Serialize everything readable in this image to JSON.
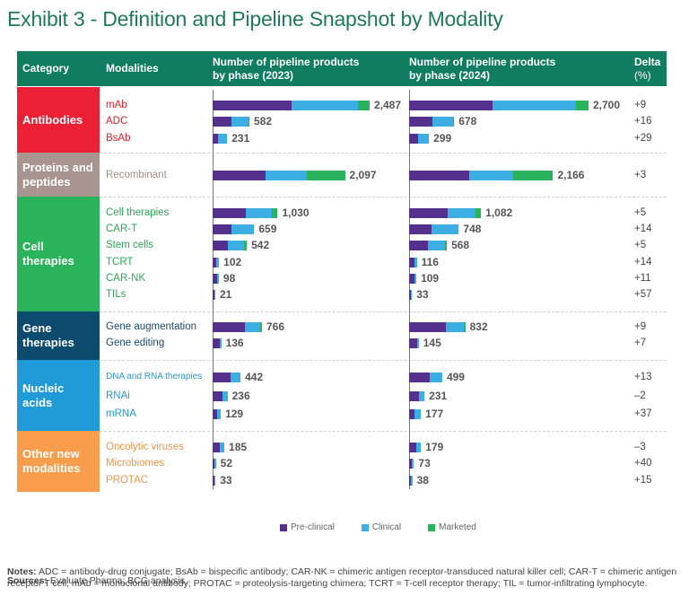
{
  "title": "Exhibit 3 - Definition and Pipeline Snapshot by Modality",
  "header": {
    "category": "Category",
    "modalities": "Modalities",
    "col2023_line1": "Number of pipeline products",
    "col2023_line2": "by phase (2023)",
    "col2024_line1": "Number of pipeline products",
    "col2024_line2": "by phase (2024)",
    "delta_line1": "Delta",
    "delta_line2": "(%)"
  },
  "colors": {
    "header": "#0f7d5e",
    "title": "#1e7a5a",
    "preclinical": "#55308d",
    "clinical": "#3daee3",
    "marketed": "#29b35c"
  },
  "legend": {
    "preclinical": "Pre-clinical",
    "clinical": "Clinical",
    "marketed": "Marketed"
  },
  "categories": [
    {
      "label_line1": "Antibodies",
      "label_line2": "",
      "color": "#ec2034",
      "text_color": "#d9232e"
    },
    {
      "label_line1": "Proteins and",
      "label_line2": "peptides",
      "color": "#a99590",
      "text_color": "#a18e89"
    },
    {
      "label_line1": "Cell",
      "label_line2": "therapies",
      "color": "#2bb35b",
      "text_color": "#2aa855"
    },
    {
      "label_line1": "Gene",
      "label_line2": "therapies",
      "color": "#0c4a6e",
      "text_color": "#174a70"
    },
    {
      "label_line1": "Nucleic",
      "label_line2": "acids",
      "color": "#209bd7",
      "text_color": "#1e9ad6"
    },
    {
      "label_line1": "Other new",
      "label_line2": "modalities",
      "color": "#f79d4c",
      "text_color": "#f0954a"
    }
  ],
  "sources_label": "Sources:",
  "sources_text": " Evaluate Pharma; BCG analysis.",
  "notes_label": "Notes:",
  "notes_text": " ADC = antibody-drug conjugate; BsAb = bispecific antibody; CAR-NK = chimeric antigen receptor-transduced natural killer cell; CAR-T = chimeric antigen receptor T cell; mAb = monoclonal antibody; PROTAC = proteolysis-targeting chimera; TCRT = T-cell receptor therapy; TIL = tumor-infiltrating lymphocyte.",
  "chart_data": {
    "type": "bar",
    "title": "Exhibit 3 - Definition and Pipeline Snapshot by Modality",
    "orientation": "horizontal-stacked",
    "series_names": [
      "Pre-clinical",
      "Clinical",
      "Marketed"
    ],
    "legend_position": "bottom",
    "rows": [
      {
        "category": 0,
        "modality": "mAb",
        "total_2023": "2,487",
        "total_2024": "2,700",
        "delta": "+9",
        "y2023": [
          1250,
          1050,
          187
        ],
        "y2024": [
          1255,
          1255,
          190
        ]
      },
      {
        "category": 0,
        "modality": "ADC",
        "total_2023": "582",
        "total_2024": "678",
        "delta": "+16",
        "y2023": [
          300,
          262,
          20
        ],
        "y2024": [
          355,
          300,
          23
        ]
      },
      {
        "category": 0,
        "modality": "BsAb",
        "total_2023": "231",
        "total_2024": "299",
        "delta": "+29",
        "y2023": [
          90,
          141,
          0
        ],
        "y2024": [
          130,
          169,
          0
        ]
      },
      {
        "category": 1,
        "modality": "Recombinant",
        "total_2023": "2,097",
        "total_2024": "2,166",
        "delta": "+3",
        "y2023": [
          845,
          652,
          600
        ],
        "y2024": [
          900,
          666,
          600
        ]
      },
      {
        "category": 2,
        "modality": "Cell therapies",
        "total_2023": "1,030",
        "total_2024": "1,082",
        "delta": "+5",
        "y2023": [
          530,
          410,
          90
        ],
        "y2024": [
          585,
          410,
          87
        ]
      },
      {
        "category": 2,
        "modality": "CAR-T",
        "total_2023": "659",
        "total_2024": "748",
        "delta": "+14",
        "y2023": [
          305,
          354,
          0
        ],
        "y2024": [
          340,
          408,
          0
        ]
      },
      {
        "category": 2,
        "modality": "Stem cells",
        "total_2023": "542",
        "total_2024": "568",
        "delta": "+5",
        "y2023": [
          245,
          257,
          40
        ],
        "y2024": [
          285,
          253,
          30
        ]
      },
      {
        "category": 2,
        "modality": "TCRT",
        "total_2023": "102",
        "total_2024": "116",
        "delta": "+14",
        "y2023": [
          60,
          42,
          0
        ],
        "y2024": [
          75,
          41,
          0
        ]
      },
      {
        "category": 2,
        "modality": "CAR-NK",
        "total_2023": "98",
        "total_2024": "109",
        "delta": "+11",
        "y2023": [
          75,
          23,
          0
        ],
        "y2024": [
          75,
          34,
          0
        ]
      },
      {
        "category": 2,
        "modality": "TILs",
        "total_2023": "21",
        "total_2024": "33",
        "delta": "+57",
        "y2023": [
          6,
          15,
          0
        ],
        "y2024": [
          10,
          23,
          0
        ]
      },
      {
        "category": 3,
        "modality": "Gene augmentation",
        "total_2023": "766",
        "total_2024": "832",
        "delta": "+9",
        "y2023": [
          510,
          250,
          6
        ],
        "y2024": [
          560,
          265,
          7
        ]
      },
      {
        "category": 3,
        "modality": "Gene editing",
        "total_2023": "136",
        "total_2024": "145",
        "delta": "+7",
        "y2023": [
          115,
          21,
          0
        ],
        "y2024": [
          125,
          20,
          0
        ]
      },
      {
        "category": 4,
        "modality": "DNA and RNA therapies",
        "total_2023": "442",
        "total_2024": "499",
        "delta": "+13",
        "y2023": [
          280,
          162,
          0
        ],
        "y2024": [
          310,
          189,
          0
        ]
      },
      {
        "category": 4,
        "modality": "RNAi",
        "total_2023": "236",
        "total_2024": "231",
        "delta": "–2",
        "y2023": [
          160,
          76,
          0
        ],
        "y2024": [
          145,
          86,
          0
        ]
      },
      {
        "category": 4,
        "modality": "mRNA",
        "total_2023": "129",
        "total_2024": "177",
        "delta": "+37",
        "y2023": [
          70,
          59,
          0
        ],
        "y2024": [
          85,
          92,
          0
        ]
      },
      {
        "category": 5,
        "modality": "Oncolytic viruses",
        "total_2023": "185",
        "total_2024": "179",
        "delta": "–3",
        "y2023": [
          115,
          70,
          0
        ],
        "y2024": [
          110,
          69,
          0
        ]
      },
      {
        "category": 5,
        "modality": "Microbiomes",
        "total_2023": "52",
        "total_2024": "73",
        "delta": "+40",
        "y2023": [
          30,
          22,
          0
        ],
        "y2024": [
          40,
          33,
          0
        ]
      },
      {
        "category": 5,
        "modality": "PROTAC",
        "total_2023": "33",
        "total_2024": "38",
        "delta": "+15",
        "y2023": [
          25,
          8,
          0
        ],
        "y2024": [
          28,
          10,
          0
        ]
      }
    ],
    "xlim_2023": [
      0,
      2700
    ],
    "xlim_2024": [
      0,
      2700
    ],
    "grid": false
  }
}
